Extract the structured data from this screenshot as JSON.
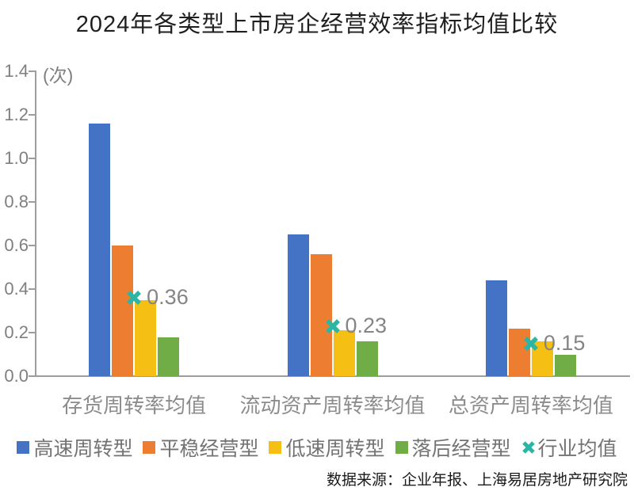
{
  "title": "2024年各类型上市房企经营效率指标均值比较",
  "unit_label": "(次)",
  "source": "数据来源：企业年报、上海易居房地产研究院",
  "colors": {
    "axis": "#9d9d9d",
    "tick_text": "#7f7f7f",
    "category_text": "#8c8c8c",
    "legend_text": "#737373",
    "title_text": "#1f1f1f",
    "marker_label_text": "#858585"
  },
  "chart_data": {
    "type": "bar",
    "title": "2024年各类型上市房企经营效率指标均值比较",
    "ylabel": "(次)",
    "xlabel": "",
    "ylim": [
      0,
      1.4
    ],
    "yticks": [
      0.0,
      0.2,
      0.4,
      0.6,
      0.8,
      1.0,
      1.2,
      1.4
    ],
    "grid": false,
    "legend_position": "bottom",
    "categories": [
      "存货周转率均值",
      "流动资产周转率均值",
      "总资产周转率均值"
    ],
    "series": [
      {
        "name": "高速周转型",
        "color": "#4472C4",
        "values": [
          1.16,
          0.65,
          0.44
        ]
      },
      {
        "name": "平稳经营型",
        "color": "#ED7D31",
        "values": [
          0.6,
          0.56,
          0.22
        ]
      },
      {
        "name": "低速周转型",
        "color": "#F5C013",
        "values": [
          0.35,
          0.21,
          0.16
        ]
      },
      {
        "name": "落后经营型",
        "color": "#70AD47",
        "values": [
          0.18,
          0.16,
          0.1
        ]
      }
    ],
    "marker_series": {
      "name": "行业均值",
      "color": "#2BB5A5",
      "marker": "x",
      "values": [
        0.36,
        0.23,
        0.15
      ],
      "labels": [
        "0.36",
        "0.23",
        "0.15"
      ]
    }
  }
}
